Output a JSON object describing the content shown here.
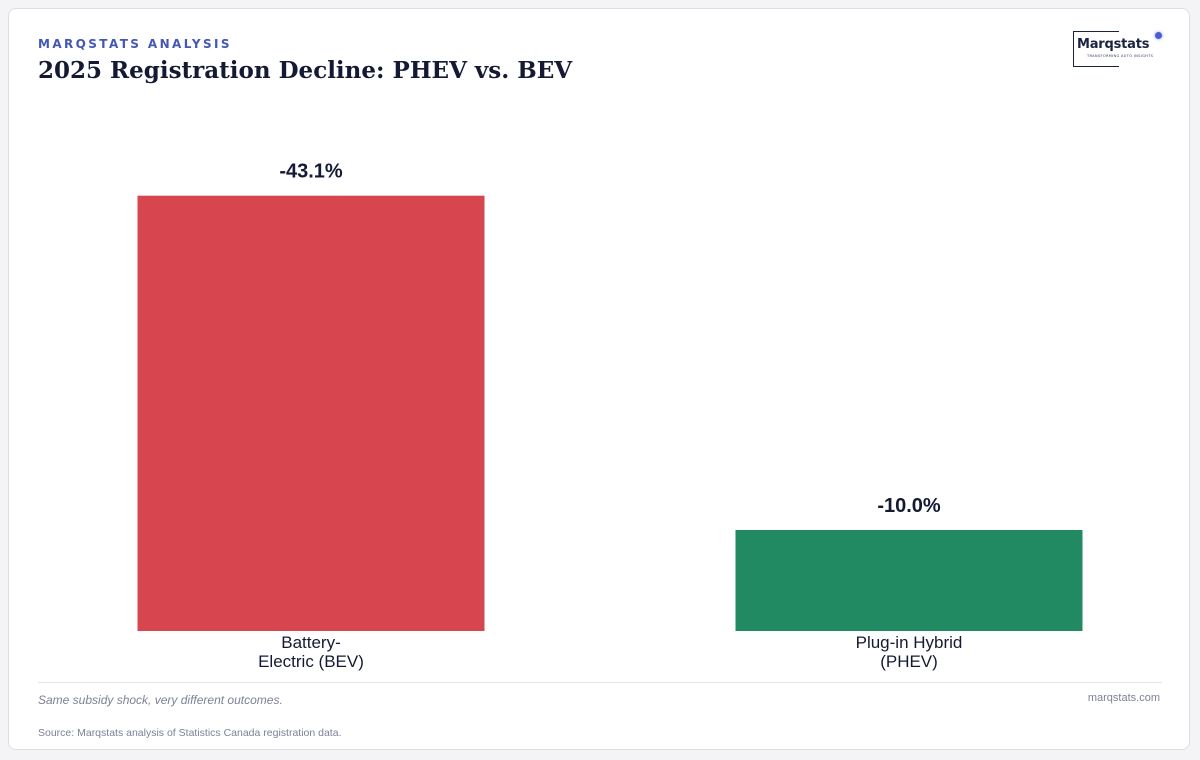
{
  "header": {
    "eyebrow": "MARQSTATS ANALYSIS",
    "title": "2025 Registration Decline: PHEV vs. BEV"
  },
  "logo": {
    "wordmark": "Marqstats",
    "tagline": "TRANSFORMING AUTO INSIGHTS"
  },
  "chart_data": {
    "type": "bar",
    "title": "2025 Registration Decline: PHEV vs. BEV",
    "categories": [
      "Battery-Electric (BEV)",
      "Plug-in Hybrid (PHEV)"
    ],
    "category_lines": [
      [
        "Battery-",
        "Electric (BEV)"
      ],
      [
        "Plug-in Hybrid",
        "(PHEV)"
      ]
    ],
    "values": [
      -43.1,
      -10.0
    ],
    "value_labels": [
      "-43.1%",
      "-10.0%"
    ],
    "colors": [
      "#d7464f",
      "#218a62"
    ],
    "xlabel": "",
    "ylabel": "",
    "ylim": [
      0,
      50
    ],
    "grid": false,
    "legend": "none"
  },
  "footer": {
    "caption": "Same subsidy shock, very different outcomes.",
    "site": "marqstats.com",
    "source": "Source: Marqstats analysis of Statistics Canada registration data."
  }
}
